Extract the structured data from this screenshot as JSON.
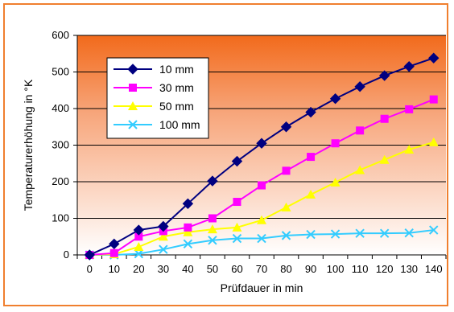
{
  "chart_data": {
    "type": "line",
    "title": "",
    "xlabel": "Prüfdauer in min",
    "ylabel": "Temperaturerhöhung in °K",
    "x": [
      0,
      10,
      20,
      30,
      40,
      50,
      60,
      70,
      80,
      90,
      100,
      110,
      120,
      130,
      140
    ],
    "ylim": [
      0,
      600
    ],
    "yticks": [
      0,
      100,
      200,
      300,
      400,
      500,
      600
    ],
    "grid": "horizontal",
    "legend_position": "top-left",
    "background": "gradient orange (top) to white (bottom)",
    "series": [
      {
        "name": "10 mm",
        "color": "#000080",
        "marker": "diamond",
        "values": [
          0,
          30,
          68,
          78,
          140,
          202,
          256,
          305,
          350,
          390,
          427,
          460,
          490,
          515,
          538
        ]
      },
      {
        "name": "30 mm",
        "color": "#ff00ff",
        "marker": "square",
        "values": [
          0,
          5,
          50,
          65,
          75,
          100,
          145,
          190,
          230,
          268,
          305,
          340,
          372,
          398,
          425
        ]
      },
      {
        "name": "50 mm",
        "color": "#ffff00",
        "marker": "triangle",
        "values": [
          0,
          2,
          22,
          50,
          62,
          70,
          75,
          95,
          130,
          165,
          198,
          232,
          260,
          288,
          308
        ]
      },
      {
        "name": "100 mm",
        "color": "#33ccff",
        "marker": "x",
        "values": [
          0,
          0,
          3,
          15,
          30,
          40,
          45,
          45,
          53,
          56,
          57,
          59,
          59,
          60,
          68
        ]
      }
    ]
  }
}
